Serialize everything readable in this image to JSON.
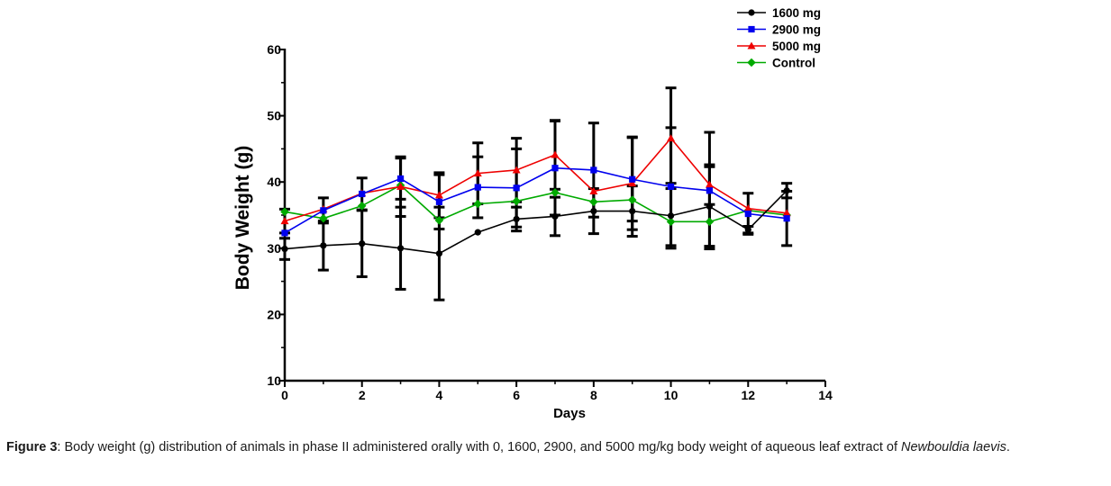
{
  "chart_data": {
    "type": "line",
    "xlabel": "Days",
    "ylabel": "Body Weight (g)",
    "xlim": [
      0,
      14
    ],
    "ylim": [
      10,
      60
    ],
    "xticks": [
      0,
      2,
      4,
      6,
      8,
      10,
      12,
      14
    ],
    "yticks": [
      10,
      20,
      30,
      40,
      50,
      60
    ],
    "grid": false,
    "legend_position": "top-right",
    "x": [
      0,
      1,
      2,
      3,
      4,
      5,
      6,
      7,
      8,
      9,
      10,
      11,
      12,
      13
    ],
    "series": [
      {
        "name": "1600 mg",
        "color": "#000000",
        "marker": "circle",
        "values": [
          29.9,
          30.4,
          30.7,
          30.0,
          29.2,
          32.4,
          34.4,
          34.8,
          35.6,
          35.6,
          34.9,
          36.3,
          32.8,
          38.7
        ],
        "error": [
          1.6,
          3.7,
          5.0,
          6.2,
          7.0,
          0,
          1.8,
          2.9,
          3.4,
          3.8,
          4.9,
          6.0,
          0.5,
          1.1
        ]
      },
      {
        "name": "2900 mg",
        "color": "#0000ee",
        "marker": "square",
        "values": [
          32.3,
          35.7,
          38.2,
          40.5,
          37.0,
          39.2,
          39.1,
          42.1,
          41.8,
          40.4,
          39.3,
          38.7,
          35.2,
          34.5
        ],
        "error": [
          0,
          1.9,
          2.4,
          3.1,
          4.1,
          4.6,
          5.9,
          7.1,
          7.1,
          6.3,
          8.9,
          8.8,
          3.1,
          4.1
        ]
      },
      {
        "name": "5000 mg",
        "color": "#ee0000",
        "marker": "triangle",
        "values": [
          34.1,
          35.9,
          38.3,
          39.3,
          38.0,
          41.3,
          41.8,
          44.1,
          38.6,
          39.8,
          46.6,
          39.6,
          36.0,
          35.3
        ],
        "error": [
          1.8,
          0,
          0,
          4.5,
          3.4,
          4.6,
          4.8,
          5.2,
          0,
          7.0,
          7.6,
          3.0,
          0,
          0
        ]
      },
      {
        "name": "Control",
        "color": "#00aa00",
        "marker": "diamond",
        "values": [
          35.5,
          34.5,
          36.4,
          39.5,
          34.2,
          36.7,
          37.1,
          38.4,
          37.0,
          37.3,
          34.0,
          34.0,
          35.7,
          35.0
        ],
        "error": [
          0,
          0,
          0,
          0,
          0,
          0,
          0,
          0,
          0,
          0,
          0,
          0,
          0,
          0
        ]
      }
    ]
  },
  "caption": {
    "label": "Figure 3",
    "text": ": Body weight (g) distribution of animals in phase II administered orally with 0, 1600, 2900, and 5000 mg/kg body weight of aqueous leaf extract of ",
    "species": "Newbouldia laevis",
    "end": "."
  }
}
